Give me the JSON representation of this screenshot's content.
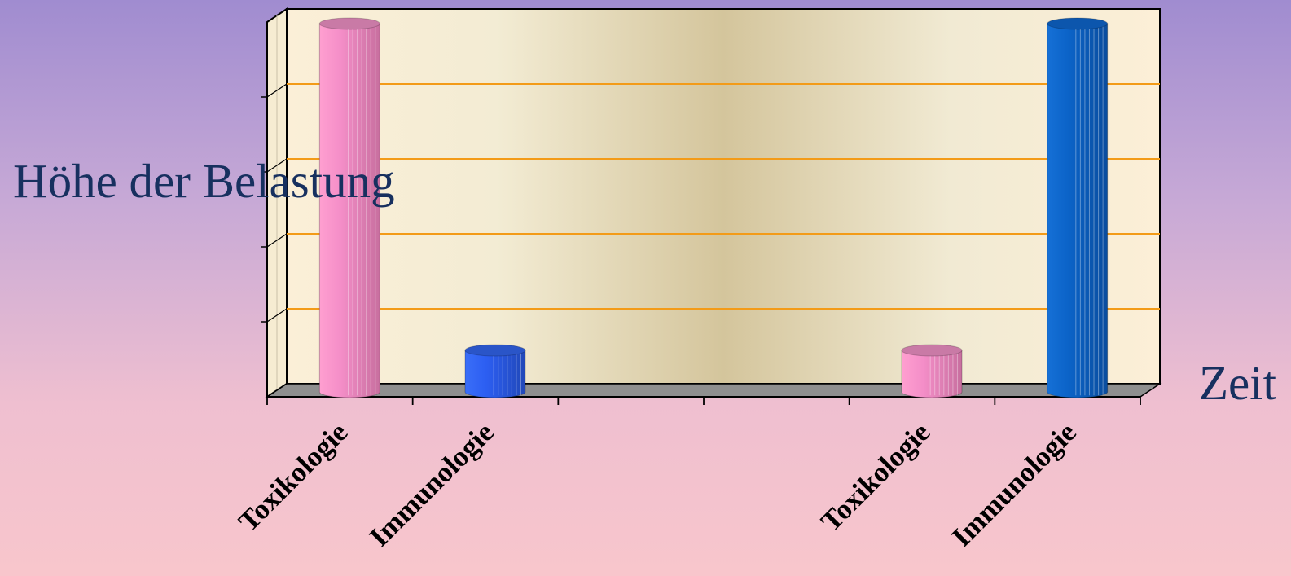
{
  "chart_data": {
    "type": "bar",
    "style": "3d-cylinder",
    "title": "",
    "ylabel": "Höhe der Belastung",
    "xlabel": "Zeit",
    "categories": [
      "Toxikologie",
      "Immunologie",
      "",
      "",
      "Toxikologie",
      "Immunologie"
    ],
    "series": [
      {
        "values": [
          100,
          0,
          0,
          0,
          10,
          0
        ],
        "color": "#f58fc8"
      },
      {
        "values": [
          0,
          10,
          0,
          0,
          0,
          100
        ],
        "color": "#1b63c9"
      }
    ],
    "bar_colors": [
      "#f58fc8",
      "#2c5ef2",
      null,
      null,
      "#f58fc8",
      "#0b63c8"
    ],
    "ylim": [
      0,
      100
    ],
    "gridlines": 5,
    "grid": true,
    "grid_color": "#f39b18",
    "legend": "none"
  }
}
